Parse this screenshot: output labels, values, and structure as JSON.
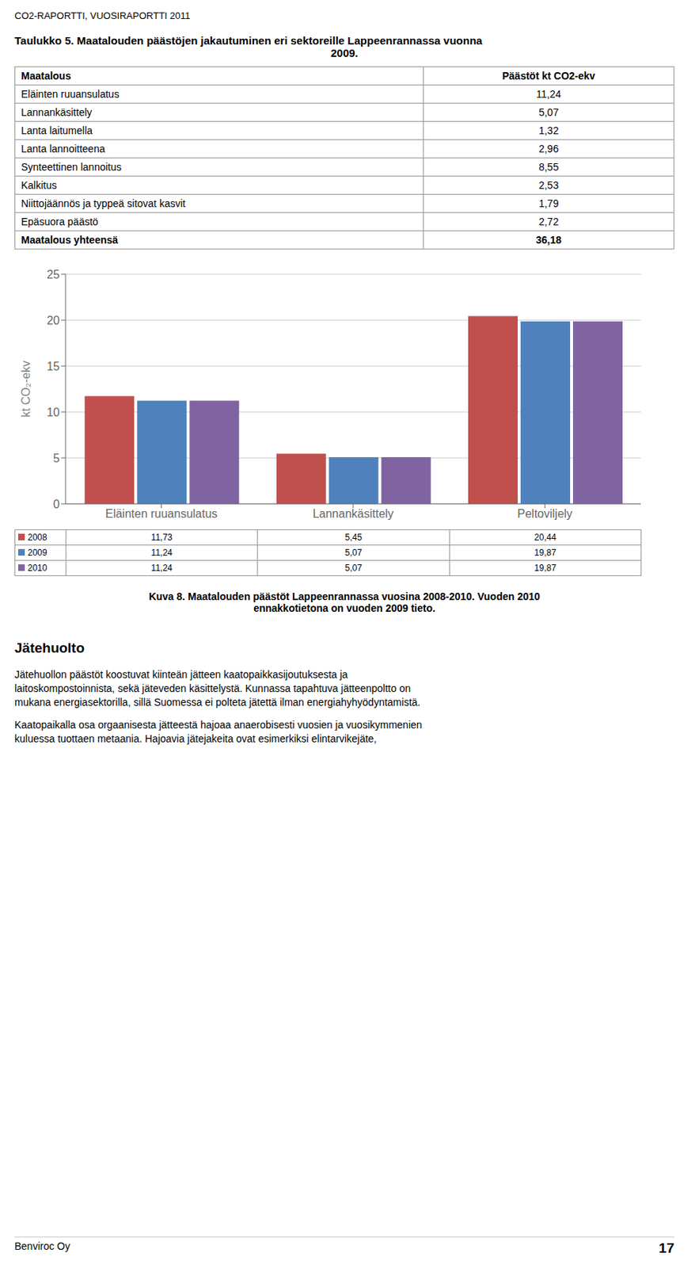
{
  "page_header": "CO2-RAPORTTI, VUOSIRAPORTTI 2011",
  "table_title": [
    "Taulukko 5. Maatalouden päästöjen jakautuminen eri sektoreille Lappeenrannassa vuonna",
    "2009."
  ],
  "table": {
    "header": [
      "Maatalous",
      "Päästöt kt CO2-ekv"
    ],
    "rows": [
      [
        "Eläinten ruuansulatus",
        "11,24"
      ],
      [
        "Lannankäsittely",
        "5,07"
      ],
      [
        "Lanta laitumella",
        "1,32"
      ],
      [
        "Lanta lannoitteena",
        "2,96"
      ],
      [
        "Synteettinen lannoitus",
        "8,55"
      ],
      [
        "Kalkitus",
        "2,53"
      ],
      [
        "Niittojäännös ja typpeä sitovat kasvit",
        "1,79"
      ],
      [
        "Epäsuora päästö",
        "2,72"
      ],
      [
        "Maatalous yhteensä",
        "36,18"
      ]
    ]
  },
  "chart_data": {
    "type": "bar",
    "ylabel": "kt CO₂-ekv",
    "categories": [
      "Eläinten ruuansulatus",
      "Lannankäsittely",
      "Peltoviljely"
    ],
    "series": [
      {
        "name": "2008",
        "color": "#C0504D",
        "values": [
          11.73,
          5.45,
          20.44
        ],
        "value_labels": [
          "11,73",
          "5,45",
          "20,44"
        ]
      },
      {
        "name": "2009",
        "color": "#4F81BD",
        "values": [
          11.24,
          5.07,
          19.87
        ],
        "value_labels": [
          "11,24",
          "5,07",
          "19,87"
        ]
      },
      {
        "name": "2010",
        "color": "#8064A2",
        "values": [
          11.24,
          5.07,
          19.87
        ],
        "value_labels": [
          "11,24",
          "5,07",
          "19,87"
        ]
      }
    ],
    "ylim": [
      0,
      25
    ],
    "yticks": [
      0,
      5,
      10,
      15,
      20,
      25
    ],
    "grid": true
  },
  "figure_caption": [
    "Kuva 8. Maatalouden päästöt Lappeenrannassa vuosina 2008-2010. Vuoden 2010",
    "ennakkotietona on vuoden 2009 tieto."
  ],
  "section_title": "Jätehuolto",
  "body_paragraphs": [
    [
      "Jätehuollon päästöt koostuvat kiinteän jätteen kaatopaikkasijoutuksesta ja",
      "laitoskompostoinnista, sekä jäteveden käsittelystä. Kunnassa tapahtuva jätteenpoltto on",
      "mukana energiasektorilla, sillä Suomessa ei polteta jätettä ilman energiahyhyödyntamistä."
    ],
    [
      "Kaatopaikalla osa orgaanisesta jätteestä hajoaa anaerobisesti vuosien ja vuosikymmenien",
      "kuluessa tuottaen metaania. Hajoavia jätejakeita ovat esimerkiksi elintarvikejäte,"
    ]
  ],
  "footer_left": "Benviroc Oy",
  "footer_right": "17"
}
